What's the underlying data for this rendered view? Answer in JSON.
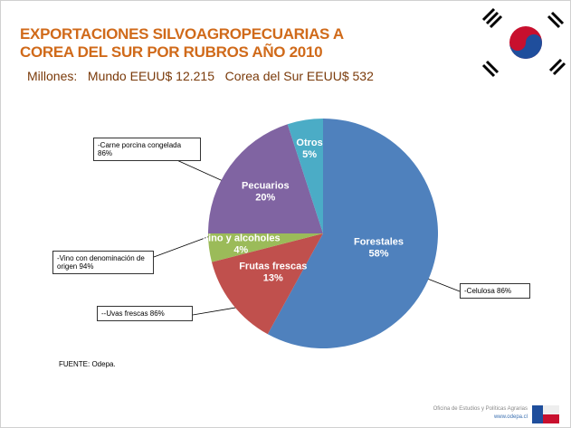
{
  "chart_data": {
    "type": "pie",
    "title_lines": [
      "EXPORTACIONES SILVOAGROPECUARIAS A",
      "COREA DEL SUR POR RUBROS AÑO 2010"
    ],
    "subtitle": "Millones:   Mundo EEUU$ 12.215   Corea del Sur EEUU$ 532",
    "categories": [
      "Forestales",
      "Frutas frescas",
      "Vino y alcoholes",
      "Pecuarios",
      "Otros"
    ],
    "values": [
      58,
      13,
      4,
      20,
      5
    ],
    "value_labels": [
      "58%",
      "13%",
      "4%",
      "20%",
      "5%"
    ],
    "colors": [
      "#4f81bd",
      "#c0504d",
      "#9bbb59",
      "#8064a2",
      "#4bacc6"
    ],
    "annotations": [
      "-Celulosa 86%",
      "--Uvas frescas 86%",
      "-Vino con denominación de origen 94%",
      "-Carne porcina congelada 86%"
    ],
    "source": "FUENTE: Odepa.",
    "footer": [
      "Oficina de Estudios y Políticas Agrarias",
      "www.odepa.cl"
    ]
  }
}
